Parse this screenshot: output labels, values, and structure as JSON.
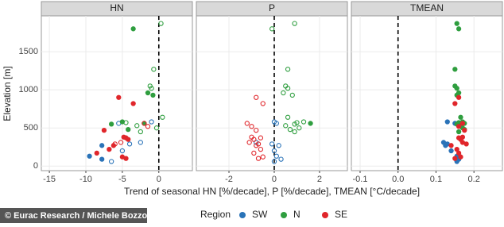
{
  "figure": {
    "ylabel": "Elevation [m]",
    "xlabel": "Trend of seasonal HN [%/decade], P [%/decade], TMEAN [°C/decade]",
    "legend_title": "Region",
    "credit": "© Eurac Research / Michele Bozzoli",
    "grid": true
  },
  "chart_data": [
    {
      "type": "scatter",
      "title": "HN",
      "xlim": [
        -16.1,
        4.6
      ],
      "xticks": [
        -15,
        -10,
        -5,
        0
      ],
      "ylim": [
        -60,
        1970
      ],
      "yticks": [
        0,
        500,
        1000,
        1500
      ],
      "vline": 0,
      "series": [
        {
          "name": "SW",
          "color": "#2a73b8",
          "x": [
            -1,
            -5.5,
            -2.5,
            -4,
            -7.8,
            -5,
            -9.5,
            -7.8,
            -6.5
          ],
          "values": [
            580,
            560,
            310,
            290,
            270,
            200,
            130,
            90,
            60
          ],
          "filled": [
            false,
            false,
            false,
            false,
            true,
            false,
            true,
            true,
            false
          ]
        },
        {
          "name": "N",
          "color": "#2f9e3f",
          "x": [
            0.3,
            -3.5,
            -0.7,
            -1.2,
            -1,
            -1.5,
            -0.8,
            0.5,
            -5,
            -4.5,
            -2,
            -6.5,
            -3,
            -0.3,
            -4.2,
            -2.5
          ],
          "values": [
            1870,
            1800,
            1270,
            1050,
            1020,
            960,
            930,
            640,
            580,
            570,
            560,
            550,
            530,
            500,
            480,
            450
          ],
          "filled": [
            false,
            true,
            false,
            false,
            false,
            true,
            true,
            false,
            true,
            false,
            true,
            true,
            false,
            false,
            true,
            false
          ]
        },
        {
          "name": "SE",
          "color": "#e0262b",
          "x": [
            -5.5,
            -3.5,
            -2,
            -1.5,
            -7.5,
            -4.8,
            -4.5,
            -4.2,
            -5.2,
            -6,
            -6.2,
            -6.8,
            -8.5,
            -5,
            -4.5
          ],
          "values": [
            900,
            820,
            560,
            520,
            470,
            380,
            370,
            350,
            310,
            290,
            270,
            220,
            170,
            120,
            100
          ],
          "filled": [
            true,
            true,
            false,
            false,
            true,
            true,
            true,
            true,
            false,
            false,
            true,
            true,
            true,
            true,
            true
          ]
        }
      ]
    },
    {
      "type": "scatter",
      "title": "P",
      "xlim": [
        -3.44,
        3.23
      ],
      "xticks": [
        -2,
        0,
        2
      ],
      "ylim": [
        -60,
        1970
      ],
      "yticks": [
        0,
        500,
        1000,
        1500
      ],
      "vline": 0,
      "series": [
        {
          "name": "SW",
          "color": "#2a73b8",
          "x": [
            0,
            0.1,
            -0.8,
            -0.1,
            0.2,
            0,
            0.1,
            0.3,
            0
          ],
          "values": [
            580,
            560,
            310,
            290,
            270,
            200,
            130,
            90,
            60
          ],
          "filled": [
            false,
            false,
            false,
            false,
            false,
            false,
            false,
            false,
            false
          ]
        },
        {
          "name": "N",
          "color": "#2f9e3f",
          "x": [
            0.9,
            -0.1,
            0.6,
            0.5,
            0.6,
            0.4,
            0.8,
            0.6,
            1.3,
            1,
            1.6,
            0.9,
            0.5,
            1.1,
            0.7,
            0.9
          ],
          "values": [
            1870,
            1800,
            1270,
            1050,
            1020,
            960,
            930,
            640,
            580,
            570,
            560,
            550,
            530,
            500,
            480,
            450
          ],
          "filled": [
            false,
            false,
            false,
            false,
            false,
            false,
            false,
            false,
            false,
            false,
            true,
            false,
            false,
            false,
            false,
            false
          ]
        },
        {
          "name": "SE",
          "color": "#e0262b",
          "x": [
            -0.8,
            -0.5,
            -1.2,
            -1,
            -0.8,
            -1,
            -0.6,
            -0.9,
            -1.1,
            -0.7,
            -0.8,
            -0.6,
            -0.9,
            -0.5,
            -0.7
          ],
          "values": [
            900,
            820,
            560,
            520,
            470,
            380,
            370,
            350,
            310,
            290,
            270,
            220,
            170,
            120,
            100
          ],
          "filled": [
            false,
            false,
            false,
            false,
            false,
            false,
            false,
            false,
            false,
            false,
            false,
            false,
            false,
            false,
            false
          ]
        }
      ]
    },
    {
      "type": "scatter",
      "title": "TMEAN",
      "xlim": [
        -0.123,
        0.275
      ],
      "xticks": [
        -0.1,
        {
          "value": 0,
          "label": "0.0"
        },
        0.1,
        0.2
      ],
      "ylim": [
        -60,
        1970
      ],
      "yticks": [
        0,
        500,
        1000,
        1500
      ],
      "vline": 0,
      "series": [
        {
          "name": "SW",
          "color": "#2a73b8",
          "x": [
            0.13,
            0.15,
            0.12,
            0.13,
            0.125,
            0.14,
            0.155,
            0.16,
            0.155
          ],
          "values": [
            580,
            560,
            310,
            290,
            270,
            200,
            130,
            90,
            60
          ],
          "filled": [
            true,
            true,
            true,
            true,
            true,
            true,
            true,
            true,
            true
          ]
        },
        {
          "name": "N",
          "color": "#2f9e3f",
          "x": [
            0.155,
            0.16,
            0.15,
            0.15,
            0.155,
            0.16,
            0.155,
            0.165,
            0.17,
            0.16,
            0.175,
            0.155,
            0.165,
            0.17,
            0.175,
            0.16
          ],
          "values": [
            1870,
            1800,
            1270,
            1050,
            1020,
            960,
            930,
            640,
            580,
            570,
            560,
            550,
            530,
            500,
            480,
            450
          ],
          "filled": [
            true,
            true,
            true,
            true,
            true,
            true,
            true,
            true,
            true,
            true,
            true,
            true,
            true,
            true,
            true,
            true
          ]
        },
        {
          "name": "SE",
          "color": "#e0262b",
          "x": [
            0.16,
            0.15,
            0.17,
            0.16,
            0.175,
            0.17,
            0.16,
            0.165,
            0.17,
            0.18,
            0.14,
            0.155,
            0.16,
            0.165,
            0.15
          ],
          "values": [
            900,
            820,
            560,
            520,
            470,
            380,
            370,
            350,
            310,
            290,
            270,
            220,
            170,
            120,
            100
          ],
          "filled": [
            true,
            true,
            true,
            true,
            true,
            true,
            true,
            true,
            true,
            true,
            true,
            true,
            true,
            true,
            true
          ]
        }
      ]
    }
  ]
}
